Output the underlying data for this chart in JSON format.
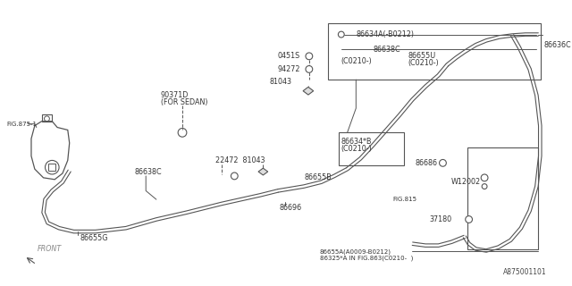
{
  "bg_color": "#ffffff",
  "line_color": "#666666",
  "text_color": "#333333",
  "diagram_id": "A875001101",
  "labels": {
    "fig875": "FIG.875-1",
    "fig815": "FIG.815",
    "part_86638C_left": "86638C",
    "part_90371D": "90371D",
    "part_90371D_sub": "(FOR SEDAN)",
    "part_22472": "22472  81043",
    "part_86655B": "86655B",
    "part_86696": "86696",
    "part_86655G": "86655G",
    "part_81043": "81043",
    "part_94272": "94272",
    "part_0451S": "0451S",
    "part_86634B": "86634*B",
    "part_86634B_sub": "(C0210-)",
    "part_86634A": "86634A(-B0212)",
    "part_86638C_right": "86638C",
    "part_C0210": "(C0210-)",
    "part_86655U": "86655U",
    "part_86655U_sub": "(C0210-)",
    "part_86636C": "86636C",
    "part_86686": "86686",
    "part_W12002": "W12002",
    "part_37180": "37180",
    "part_86655A": "86655A(A0009-B0212)",
    "part_86325": "86325*A IN FIG.863(C0210-  )",
    "front_label": "FRONT"
  }
}
